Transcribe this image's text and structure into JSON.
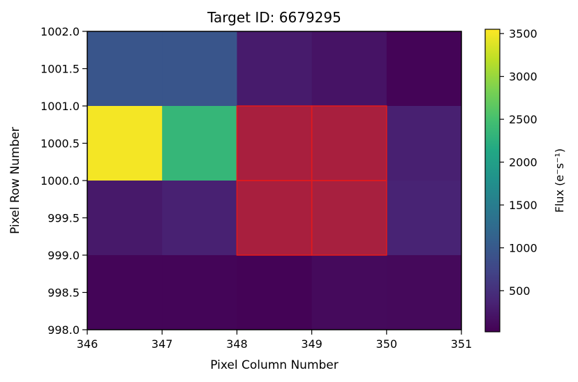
{
  "chart_data": {
    "type": "heatmap",
    "title": "Target ID: 6679295",
    "xlabel": "Pixel Column Number",
    "ylabel": "Pixel Row Number",
    "xlim": [
      346,
      351
    ],
    "ylim": [
      998,
      1002
    ],
    "x_ticks": [
      "346",
      "347",
      "348",
      "349",
      "350",
      "351"
    ],
    "y_ticks": [
      "998.0",
      "998.5",
      "999.0",
      "999.5",
      "1000.0",
      "1000.5",
      "1001.0",
      "1001.5",
      "1002.0"
    ],
    "columns": [
      346,
      347,
      348,
      349,
      350
    ],
    "rows": [
      1001,
      1000,
      999,
      998
    ],
    "values": [
      [
        950,
        950,
        280,
        200,
        50
      ],
      [
        3500,
        2350,
        420,
        430,
        330
      ],
      [
        260,
        340,
        430,
        460,
        360
      ],
      [
        60,
        60,
        40,
        110,
        100
      ]
    ],
    "aperture_mask": [
      [
        false,
        false,
        false,
        false,
        false
      ],
      [
        false,
        false,
        true,
        true,
        false
      ],
      [
        false,
        false,
        true,
        true,
        false
      ],
      [
        false,
        false,
        false,
        false,
        false
      ]
    ],
    "aperture_color": "#e31a1c",
    "colormap": "viridis",
    "colorbar": {
      "label": "Flux (e⁻s⁻¹)",
      "range": [
        20,
        3550
      ],
      "ticks": [
        "500",
        "1000",
        "1500",
        "2000",
        "2500",
        "3000",
        "3500"
      ],
      "tick_values": [
        500,
        1000,
        1500,
        2000,
        2500,
        3000,
        3500
      ]
    }
  }
}
